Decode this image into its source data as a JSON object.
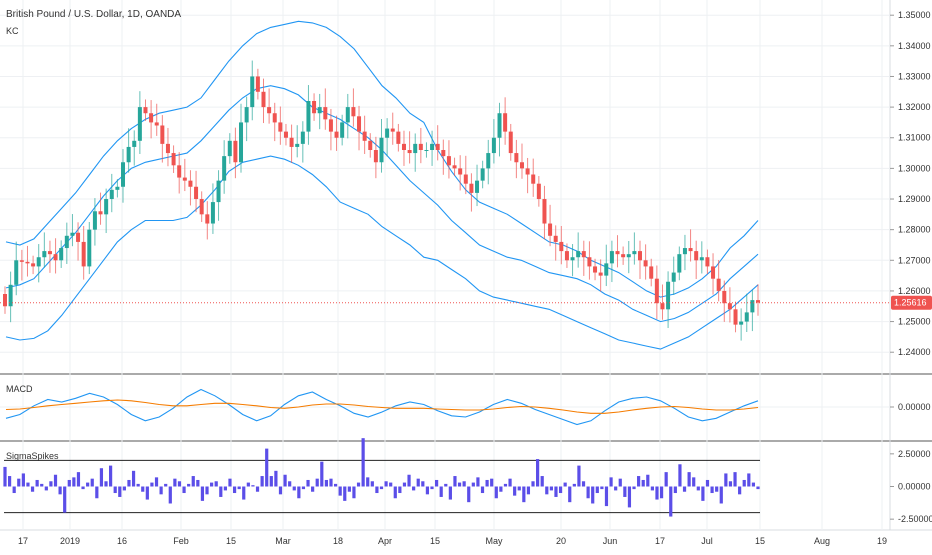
{
  "header": {
    "symbol_title": "British Pound / U.S. Dollar, 1D, OANDA",
    "overlay": "KC"
  },
  "colors": {
    "up": "#26a69a",
    "down": "#ef5350",
    "kc": "#2196f3",
    "macd": "#2196f3",
    "signal": "#f57c00",
    "spikes": "#5b4ee8",
    "last_price": "#ef5350",
    "axis_text": "#333333",
    "grid": "#eef0f3"
  },
  "chart_data": [
    {
      "type": "candlestick",
      "title": "British Pound / U.S. Dollar, 1D, OANDA",
      "xlabel": "",
      "ylabel": "",
      "ylim": [
        1.2355,
        1.353
      ],
      "y_ticks": [
        "1.35000",
        "1.34000",
        "1.33000",
        "1.32000",
        "1.31000",
        "1.30000",
        "1.29000",
        "1.28000",
        "1.27000",
        "1.26000",
        "1.25000",
        "1.24000"
      ],
      "x_ticks": [
        "17",
        "2019",
        "16",
        "Feb",
        "15",
        "Mar",
        "18",
        "Apr",
        "15",
        "May",
        "20",
        "Jun",
        "17",
        "Jul",
        "15",
        "Aug",
        "19"
      ],
      "last_price": 1.25616,
      "last_price_label": "1.25616",
      "candles_close": [
        1.255,
        1.262,
        1.27,
        1.2695,
        1.269,
        1.268,
        1.271,
        1.273,
        1.272,
        1.27,
        1.274,
        1.278,
        1.279,
        1.276,
        1.268,
        1.28,
        1.286,
        1.285,
        1.29,
        1.293,
        1.294,
        1.302,
        1.307,
        1.309,
        1.32,
        1.318,
        1.315,
        1.314,
        1.308,
        1.305,
        1.301,
        1.297,
        1.296,
        1.294,
        1.29,
        1.285,
        1.282,
        1.289,
        1.296,
        1.304,
        1.309,
        1.302,
        1.315,
        1.32,
        1.33,
        1.325,
        1.32,
        1.318,
        1.315,
        1.312,
        1.31,
        1.307,
        1.308,
        1.312,
        1.322,
        1.318,
        1.32,
        1.316,
        1.312,
        1.31,
        1.315,
        1.32,
        1.317,
        1.312,
        1.309,
        1.306,
        1.302,
        1.31,
        1.313,
        1.312,
        1.308,
        1.306,
        1.305,
        1.308,
        1.306,
        1.306,
        1.308,
        1.306,
        1.304,
        1.301,
        1.3,
        1.298,
        1.295,
        1.292,
        1.296,
        1.3,
        1.305,
        1.31,
        1.318,
        1.312,
        1.305,
        1.302,
        1.3,
        1.298,
        1.295,
        1.29,
        1.282,
        1.278,
        1.276,
        1.273,
        1.27,
        1.271,
        1.273,
        1.271,
        1.268,
        1.266,
        1.265,
        1.269,
        1.273,
        1.272,
        1.271,
        1.272,
        1.273,
        1.27,
        1.268,
        1.264,
        1.256,
        1.254,
        1.263,
        1.266,
        1.272,
        1.274,
        1.273,
        1.27,
        1.271,
        1.268,
        1.264,
        1.26,
        1.256,
        1.254,
        1.249,
        1.25,
        1.253,
        1.257,
        1.2562
      ],
      "kc_upper": [
        1.276,
        1.275,
        1.277,
        1.282,
        1.287,
        1.292,
        1.298,
        1.304,
        1.309,
        1.313,
        1.316,
        1.318,
        1.319,
        1.32,
        1.323,
        1.329,
        1.335,
        1.34,
        1.344,
        1.346,
        1.347,
        1.348,
        1.3475,
        1.346,
        1.343,
        1.339,
        1.333,
        1.327,
        1.323,
        1.318,
        1.315,
        1.306,
        1.299,
        1.293,
        1.289,
        1.287,
        1.285,
        1.282,
        1.279,
        1.276,
        1.275,
        1.273,
        1.27,
        1.268,
        1.266,
        1.263,
        1.26,
        1.258,
        1.259,
        1.261,
        1.264,
        1.268,
        1.274,
        1.278,
        1.283
      ],
      "kc_mid": [
        1.261,
        1.262,
        1.264,
        1.269,
        1.274,
        1.279,
        1.285,
        1.291,
        1.296,
        1.3,
        1.302,
        1.303,
        1.304,
        1.305,
        1.309,
        1.314,
        1.319,
        1.323,
        1.326,
        1.327,
        1.326,
        1.324,
        1.32,
        1.318,
        1.316,
        1.313,
        1.31,
        1.306,
        1.301,
        1.296,
        1.292,
        1.288,
        1.283,
        1.279,
        1.275,
        1.273,
        1.271,
        1.27,
        1.268,
        1.266,
        1.265,
        1.264,
        1.262,
        1.259,
        1.257,
        1.254,
        1.252,
        1.25,
        1.251,
        1.253,
        1.256,
        1.259,
        1.264,
        1.268,
        1.272
      ],
      "kc_lower": [
        1.245,
        1.244,
        1.2445,
        1.247,
        1.252,
        1.258,
        1.264,
        1.27,
        1.276,
        1.28,
        1.283,
        1.283,
        1.283,
        1.284,
        1.288,
        1.293,
        1.299,
        1.302,
        1.303,
        1.304,
        1.303,
        1.301,
        1.298,
        1.294,
        1.289,
        1.287,
        1.285,
        1.281,
        1.278,
        1.275,
        1.271,
        1.27,
        1.267,
        1.264,
        1.26,
        1.258,
        1.257,
        1.256,
        1.255,
        1.254,
        1.252,
        1.25,
        1.248,
        1.246,
        1.244,
        1.243,
        1.242,
        1.241,
        1.243,
        1.245,
        1.248,
        1.251,
        1.254,
        1.258,
        1.262
      ]
    },
    {
      "type": "line",
      "title": "MACD",
      "y_ticks": [
        "0.00000"
      ],
      "ylim": [
        -1,
        1
      ],
      "series": [
        {
          "values": [
            -0.45,
            -0.3,
            0.05,
            0.3,
            0.2,
            0.35,
            0.55,
            0.4,
            0.1,
            -0.3,
            -0.55,
            -0.4,
            -0.05,
            0.4,
            0.7,
            0.45,
            0.1,
            -0.3,
            -0.55,
            -0.35,
            0.1,
            0.45,
            0.6,
            0.3,
            0.05,
            -0.25,
            -0.4,
            -0.2,
            0.05,
            0.2,
            0.1,
            -0.15,
            -0.35,
            -0.4,
            -0.2,
            0.1,
            0.3,
            0.15,
            -0.1,
            -0.3,
            -0.5,
            -0.7,
            -0.55,
            -0.15,
            0.2,
            0.35,
            0.4,
            0.25,
            -0.05,
            -0.4,
            -0.55,
            -0.45,
            -0.2,
            0.05,
            0.25
          ]
        },
        {
          "values": [
            -0.1,
            -0.08,
            -0.02,
            0.05,
            0.1,
            0.15,
            0.2,
            0.25,
            0.28,
            0.25,
            0.18,
            0.1,
            0.05,
            0.05,
            0.1,
            0.15,
            0.15,
            0.1,
            0.05,
            -0.02,
            -0.05,
            0.0,
            0.08,
            0.12,
            0.12,
            0.08,
            0.02,
            -0.02,
            -0.05,
            -0.05,
            -0.05,
            -0.08,
            -0.1,
            -0.12,
            -0.12,
            -0.08,
            -0.02,
            0.02,
            0.0,
            -0.05,
            -0.12,
            -0.2,
            -0.25,
            -0.25,
            -0.2,
            -0.12,
            -0.05,
            0.0,
            0.02,
            -0.02,
            -0.08,
            -0.12,
            -0.12,
            -0.08,
            -0.02
          ]
        }
      ]
    },
    {
      "type": "bar",
      "title": "SigmaSpikes",
      "y_ticks": [
        "2.50000",
        "0.00000",
        "-2.50000"
      ],
      "ylim": [
        -3.1,
        3.1
      ],
      "bands": [
        2.0,
        -2.0
      ],
      "values": [
        1.5,
        0.8,
        -0.5,
        0.6,
        1.0,
        0.3,
        -0.4,
        0.5,
        0.2,
        -0.3,
        0.4,
        0.9,
        -0.6,
        -2.0,
        0.5,
        0.7,
        1.1,
        -0.2,
        0.3,
        0.6,
        -0.9,
        1.4,
        0.4,
        1.6,
        -0.5,
        -0.8,
        -0.3,
        0.5,
        1.2,
        0.2,
        -0.4,
        -1.0,
        0.3,
        0.7,
        -0.6,
        0.2,
        -1.3,
        0.6,
        0.4,
        -0.5,
        0.2,
        0.8,
        0.5,
        -1.1,
        -0.6,
        0.3,
        0.4,
        -0.8,
        -0.3,
        0.6,
        -0.5,
        -0.2,
        -1.0,
        0.3,
        0.1,
        -0.4,
        0.8,
        2.9,
        0.8,
        1.2,
        -0.6,
        0.9,
        0.4,
        -0.3,
        -0.9,
        -0.2,
        0.5,
        -0.4,
        0.6,
        1.9,
        0.5,
        0.6,
        0.2,
        -0.7,
        -1.1,
        -0.4,
        -0.9,
        0.3,
        3.7,
        0.7,
        0.4,
        -0.5,
        -0.2,
        0.4,
        0.3,
        -0.9,
        -0.5,
        0.3,
        0.9,
        -0.3,
        0.6,
        0.4,
        -0.6,
        -0.2,
        0.5,
        -0.8,
        0.2,
        -1.0,
        0.8,
        0.3,
        0.4,
        -1.2,
        0.3,
        0.7,
        -0.5,
        0.5,
        0.6,
        -0.9,
        -0.4,
        0.2,
        0.6,
        -0.7,
        -0.3,
        -1.2,
        -0.6,
        0.4,
        2.1,
        0.8,
        -0.6,
        -0.3,
        -0.8,
        -0.5,
        0.3,
        -1.2,
        0.2,
        1.6,
        0.4,
        -0.9,
        -1.3,
        -0.5,
        -0.2,
        -1.5,
        0.7,
        -0.3,
        0.6,
        -0.8,
        -1.6,
        -0.2,
        0.8,
        0.5,
        0.9,
        -0.3,
        -1.0,
        -0.9,
        1.1,
        -2.3,
        -0.5,
        1.7,
        -0.4,
        1.1,
        0.7,
        -0.3,
        -1.1,
        0.5,
        -0.5,
        -0.4,
        -1.3,
        1.0,
        0.4,
        1.1,
        -0.6,
        0.5,
        1.0,
        0.3,
        -0.2
      ]
    }
  ]
}
